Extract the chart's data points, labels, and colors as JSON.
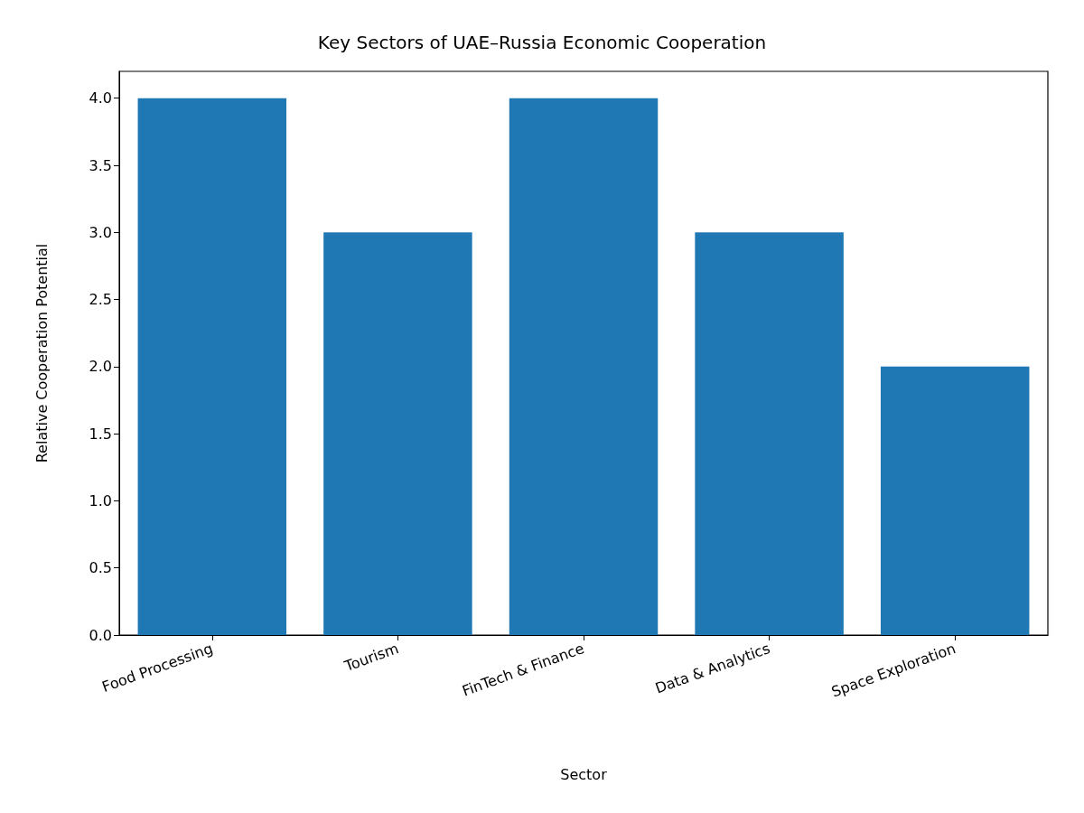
{
  "chart_data": {
    "type": "bar",
    "title": "Key Sectors of UAE–Russia Economic Cooperation",
    "xlabel": "Sector",
    "ylabel": "Relative Cooperation Potential",
    "categories": [
      "Food Processing",
      "Tourism",
      "FinTech & Finance",
      "Data & Analytics",
      "Space Exploration"
    ],
    "values": [
      4,
      3,
      4,
      3,
      2
    ],
    "color": "#1f77b4",
    "ylim": [
      0,
      4.2
    ],
    "yticks": [
      {
        "value": 0,
        "label": "0.0"
      },
      0.5,
      {
        "value": 1,
        "label": "1.0"
      },
      1.5,
      {
        "value": 2,
        "label": "2.0"
      },
      2.5,
      {
        "value": 3,
        "label": "3.0"
      },
      3.5,
      {
        "value": 4,
        "label": "4.0"
      }
    ],
    "grid": false
  }
}
